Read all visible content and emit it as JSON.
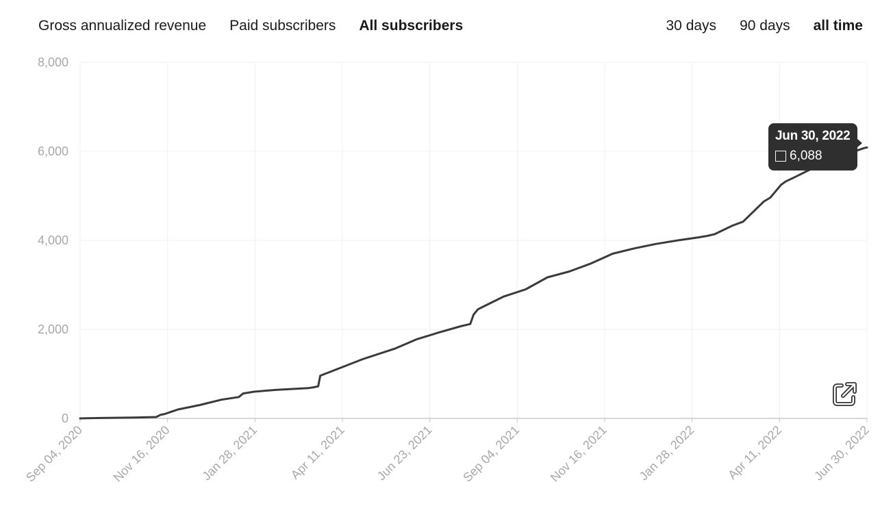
{
  "metric_tabs": [
    {
      "label": "Gross annualized revenue",
      "active": false
    },
    {
      "label": "Paid subscribers",
      "active": false
    },
    {
      "label": "All subscribers",
      "active": true
    }
  ],
  "range_tabs": [
    {
      "label": "30 days",
      "active": false
    },
    {
      "label": "90 days",
      "active": false
    },
    {
      "label": "all time",
      "active": true
    }
  ],
  "tooltip": {
    "date": "Jun 30, 2022",
    "value": "6,088"
  },
  "colors": {
    "line": "#3a3a3a",
    "grid": "#f0f0f0",
    "axis": "#c8c8c8",
    "tick_text": "#a8a8a8",
    "tooltip_bg": "#2f2f2f"
  },
  "icons": {
    "expand": "external-link-icon"
  },
  "chart_data": {
    "type": "line",
    "title": "All subscribers",
    "xlabel": "",
    "ylabel": "",
    "ylim": [
      0,
      8000
    ],
    "yticks": [
      0,
      2000,
      4000,
      6000,
      8000
    ],
    "ytick_labels": [
      "0",
      "2,000",
      "4,000",
      "6,000",
      "8,000"
    ],
    "xticks": [
      "Sep 04, 2020",
      "Nov 16, 2020",
      "Jan 28, 2021",
      "Apr 11, 2021",
      "Jun 23, 2021",
      "Sep 04, 2021",
      "Nov 16, 2021",
      "Jan 28, 2022",
      "Apr 11, 2022",
      "Jun 30, 2022"
    ],
    "grid": true,
    "series": [
      {
        "name": "All subscribers",
        "x_day": [
          0,
          20,
          50,
          70,
          74,
          78,
          90,
          110,
          130,
          146,
          150,
          160,
          180,
          210,
          215,
          219,
          221,
          240,
          260,
          290,
          310,
          330,
          350,
          359,
          362,
          366,
          370,
          390,
          410,
          430,
          450,
          470,
          490,
          510,
          530,
          550,
          570,
          577,
          584,
          600,
          610,
          629,
          635,
          645,
          649,
          660,
          670,
          680,
          690,
          700,
          708,
          715,
          721,
          724
        ],
        "values": [
          0,
          10,
          20,
          30,
          80,
          100,
          200,
          300,
          420,
          480,
          560,
          600,
          640,
          680,
          700,
          720,
          960,
          1140,
          1330,
          1570,
          1780,
          1930,
          2070,
          2120,
          2330,
          2450,
          2500,
          2740,
          2900,
          3170,
          3300,
          3480,
          3700,
          3820,
          3920,
          4000,
          4070,
          4100,
          4140,
          4330,
          4420,
          4870,
          4960,
          5250,
          5320,
          5450,
          5570,
          5700,
          5820,
          5920,
          5980,
          6020,
          6070,
          6088
        ]
      }
    ],
    "highlight": {
      "date": "Jun 30, 2022",
      "value": 6088
    }
  }
}
